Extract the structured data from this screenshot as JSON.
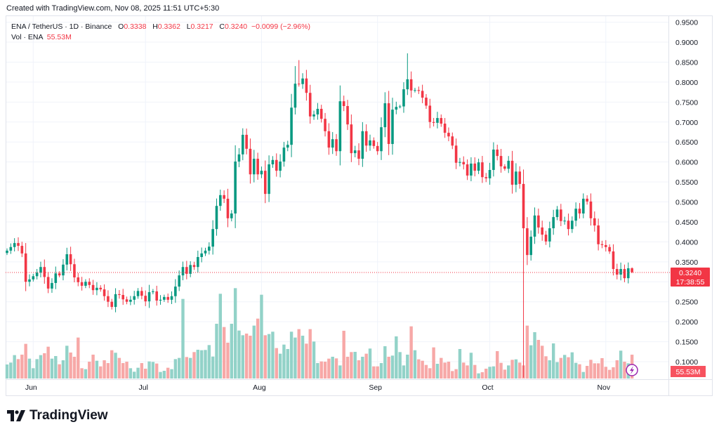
{
  "header": {
    "created_text": "Created with TradingView.com, Nov 08, 2025 11:51 UTC+5:30"
  },
  "legend": {
    "symbol": "ENA / TetherUS · 1D · Binance",
    "open_label": "O",
    "open": "0.3338",
    "high_label": "H",
    "high": "0.3362",
    "low_label": "L",
    "low": "0.3217",
    "close_label": "C",
    "close": "0.3240",
    "change": "−0.0099 (−2.96%)",
    "volume_label": "Vol · ENA",
    "volume": "55.53M"
  },
  "price_label": {
    "value": "0.3240",
    "countdown": "17:38:55"
  },
  "volume_label": {
    "value": "55.53M"
  },
  "logo": {
    "text": "TradingView"
  },
  "colors": {
    "up": "#089981",
    "down": "#f23645",
    "volume_up": "#92d2c8",
    "volume_down": "#f7a8a7",
    "grid": "#f0f3fa",
    "border": "#e0e3eb",
    "replay_icon": "#9c27b0"
  },
  "chart_data": {
    "type": "candlestick",
    "title": "ENA / TetherUS · 1D · Binance",
    "x_range": [
      "2025-05-25",
      "2025-11-08"
    ],
    "x_tick_labels": [
      "Jun",
      "Jul",
      "Aug",
      "Sep",
      "Oct",
      "Nov"
    ],
    "x_tick_index": [
      7,
      37,
      68,
      99,
      129,
      160
    ],
    "y_range": [
      0.07,
      0.97
    ],
    "y_tick_labels": [
      "0.9500",
      "0.9000",
      "0.8500",
      "0.8000",
      "0.7500",
      "0.7000",
      "0.6500",
      "0.6000",
      "0.5500",
      "0.5000",
      "0.4500",
      "0.4000",
      "0.3500",
      "0.2500",
      "0.2000",
      "0.1500",
      "0.1000"
    ],
    "grid": true,
    "first_open": 0.372,
    "close": [
      0.378,
      0.387,
      0.397,
      0.39,
      0.371,
      0.3,
      0.306,
      0.314,
      0.323,
      0.337,
      0.312,
      0.283,
      0.297,
      0.321,
      0.316,
      0.343,
      0.369,
      0.344,
      0.311,
      0.299,
      0.29,
      0.3,
      0.292,
      0.279,
      0.285,
      0.281,
      0.264,
      0.25,
      0.237,
      0.269,
      0.267,
      0.256,
      0.25,
      0.255,
      0.264,
      0.277,
      0.265,
      0.251,
      0.274,
      0.276,
      0.253,
      0.255,
      0.262,
      0.255,
      0.264,
      0.288,
      0.316,
      0.337,
      0.32,
      0.342,
      0.337,
      0.362,
      0.371,
      0.378,
      0.388,
      0.432,
      0.49,
      0.517,
      0.508,
      0.459,
      0.471,
      0.601,
      0.619,
      0.668,
      0.633,
      0.569,
      0.608,
      0.569,
      0.578,
      0.52,
      0.594,
      0.605,
      0.578,
      0.601,
      0.636,
      0.643,
      0.736,
      0.796,
      0.795,
      0.809,
      0.773,
      0.714,
      0.719,
      0.733,
      0.708,
      0.677,
      0.636,
      0.657,
      0.627,
      0.752,
      0.74,
      0.694,
      0.622,
      0.629,
      0.608,
      0.677,
      0.641,
      0.654,
      0.64,
      0.627,
      0.687,
      0.747,
      0.645,
      0.731,
      0.738,
      0.739,
      0.782,
      0.807,
      0.779,
      0.78,
      0.778,
      0.761,
      0.741,
      0.7,
      0.698,
      0.71,
      0.696,
      0.673,
      0.664,
      0.641,
      0.598,
      0.6,
      0.594,
      0.566,
      0.596,
      0.578,
      0.599,
      0.562,
      0.559,
      0.58,
      0.631,
      0.615,
      0.589,
      0.583,
      0.603,
      0.543,
      0.576,
      0.545,
      0.434,
      0.367,
      0.413,
      0.466,
      0.436,
      0.418,
      0.401,
      0.434,
      0.462,
      0.481,
      0.452,
      0.453,
      0.432,
      0.453,
      0.483,
      0.471,
      0.508,
      0.501,
      0.459,
      0.441,
      0.394,
      0.392,
      0.387,
      0.376,
      0.332,
      0.318,
      0.332,
      0.309,
      0.3338,
      0.324
    ],
    "high_overrides": {
      "77": 0.84,
      "78": 0.855,
      "107": 0.872,
      "167": 0.3362
    },
    "low_overrides": {
      "138": 0.06,
      "167": 0.3217
    },
    "volume_unit": "M",
    "volume": [
      32.7,
      37.1,
      54.5,
      45.2,
      55.6,
      80.7,
      46.3,
      24,
      45.2,
      54.5,
      58.9,
      74.1,
      46.3,
      52.3,
      33.2,
      42.5,
      76.3,
      60.5,
      50.7,
      95.4,
      24,
      21.8,
      39.2,
      55.6,
      41.4,
      28.3,
      42.5,
      36,
      65.9,
      60,
      48,
      36,
      39.2,
      24,
      15.8,
      25.1,
      36,
      22.9,
      39.8,
      38.7,
      34.9,
      15.3,
      18,
      25.1,
      21.8,
      45.2,
      48,
      185.3,
      50.1,
      48,
      61.6,
      67,
      65.9,
      66.5,
      77.9,
      51.2,
      127.5,
      197.3,
      119.9,
      83.4,
      127.5,
      210.4,
      111.7,
      100.8,
      104.6,
      99.7,
      123.2,
      139.5,
      195.1,
      100.8,
      103.6,
      109,
      70.9,
      57.8,
      79,
      68.7,
      109,
      95.4,
      115,
      99.7,
      81.2,
      115,
      86.1,
      36,
      39.8,
      39.2,
      46.3,
      50.7,
      46.9,
      30.5,
      111.2,
      50.7,
      61.6,
      62.1,
      42.5,
      50.7,
      57.8,
      69.8,
      28.3,
      28.3,
      36,
      75.2,
      50.7,
      53.4,
      98.1,
      61.6,
      30.5,
      55.6,
      121.5,
      65.9,
      44.7,
      41.4,
      31.6,
      24,
      72.5,
      34.3,
      48,
      37.1,
      39.2,
      17.4,
      21.8,
      68.7,
      37.1,
      30.5,
      60,
      31.6,
      12,
      14.7,
      22.9,
      27.3,
      28.3,
      63.8,
      36.5,
      20.7,
      30.5,
      43.6,
      44.7,
      37.1,
      30.5,
      123.2,
      77.4,
      107.9,
      89.9,
      76.3,
      51.8,
      42.5,
      81.8,
      38.2,
      48,
      55,
      49.6,
      61,
      36.5,
      33.2,
      15.3,
      29.4,
      43.6,
      35.4,
      35.4,
      47.4,
      27.3,
      20.2,
      26.2,
      42.5,
      64.9,
      39.2,
      35.4,
      55.53
    ]
  }
}
